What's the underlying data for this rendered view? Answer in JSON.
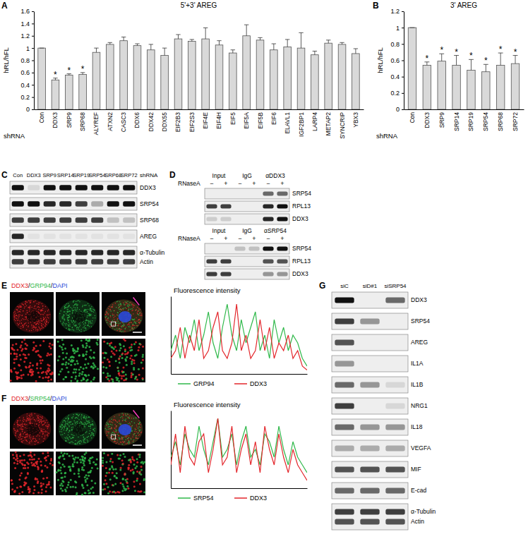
{
  "chart_data": [
    {
      "type": "bar",
      "title": "5'+3' AREG",
      "y_label": "hRL/hFL",
      "x_label": "shRNA",
      "categories": [
        "Con",
        "DDX3",
        "SRP9",
        "SRP68",
        "ALYREF",
        "ATXN2",
        "CASC3",
        "DDX6",
        "DDX42",
        "DDX55",
        "EIF2B3",
        "EIF2S3",
        "EIF4E",
        "EIF4H",
        "EIF5",
        "EIF5A",
        "EIF5B",
        "EIF6",
        "ELAVL1",
        "IGF2BP1",
        "LARP4",
        "METAP2",
        "SYNCRIP",
        "YBX3"
      ],
      "values": [
        1,
        0.48,
        0.56,
        0.57,
        0.93,
        1.06,
        1.12,
        1.04,
        0.97,
        0.88,
        1.15,
        1.11,
        1.15,
        1.05,
        0.92,
        1.2,
        1.13,
        0.97,
        1.02,
        1.0,
        0.89,
        1.08,
        1.06,
        0.91
      ],
      "errors": [
        0,
        0.03,
        0.02,
        0.03,
        0.07,
        0.03,
        0.06,
        0.03,
        0.09,
        0.12,
        0.07,
        0.03,
        0.18,
        0.07,
        0.05,
        0.18,
        0.04,
        0.1,
        0.12,
        0.25,
        0.06,
        0.05,
        0.03,
        0.08
      ],
      "color": "#d9d9d9",
      "ylim": [
        0,
        1.6
      ],
      "yticks": [
        0,
        0.2,
        0.4,
        0.6,
        0.8,
        1,
        1.2,
        1.4,
        1.6
      ],
      "annotations": [
        {
          "category": "DDX3",
          "text": "*"
        },
        {
          "category": "SRP9",
          "text": "*"
        },
        {
          "category": "SRP68",
          "text": "*"
        }
      ]
    },
    {
      "type": "bar",
      "title": "3' AREG",
      "y_label": "hRL/hFL",
      "x_label": "shRNA",
      "categories": [
        "Con",
        "DDX3",
        "SRP9",
        "SRP14",
        "SRP19",
        "SRP54",
        "SRP68",
        "SRP72"
      ],
      "values": [
        1,
        0.54,
        0.59,
        0.54,
        0.48,
        0.46,
        0.54,
        0.56
      ],
      "errors": [
        0,
        0.04,
        0.09,
        0.12,
        0.13,
        0.09,
        0.15,
        0.1
      ],
      "color": "#d9d9d9",
      "ylim": [
        0,
        1.2
      ],
      "yticks": [
        0,
        0.2,
        0.4,
        0.6,
        0.8,
        1,
        1.2
      ],
      "annotations": [
        {
          "category": "DDX3",
          "text": "*"
        },
        {
          "category": "SRP9",
          "text": "*"
        },
        {
          "category": "SRP14",
          "text": "*"
        },
        {
          "category": "SRP19",
          "text": "*"
        },
        {
          "category": "SRP54",
          "text": "*"
        },
        {
          "category": "SRP68",
          "text": "*"
        },
        {
          "category": "SRP72",
          "text": "*"
        }
      ]
    },
    {
      "type": "line",
      "title": "Fluorescence intensity",
      "tick_labels": false,
      "x": [
        0,
        1,
        2,
        3,
        4,
        5,
        6,
        7,
        8,
        9,
        10,
        11,
        12,
        13,
        14,
        15,
        16,
        17,
        18,
        19,
        20,
        21,
        22,
        23,
        24,
        25,
        26,
        27,
        28,
        29
      ],
      "xlim": [
        0,
        29
      ],
      "ylim": [
        0,
        1
      ],
      "series": [
        {
          "name": "GRP94",
          "color": "#2fb84a",
          "values": [
            0.3,
            0.5,
            0.2,
            0.6,
            0.4,
            0.7,
            0.3,
            0.5,
            0.8,
            0.4,
            0.2,
            0.6,
            0.9,
            0.5,
            0.3,
            0.7,
            0.4,
            0.6,
            0.8,
            0.3,
            0.5,
            0.2,
            0.7,
            0.4,
            0.6,
            0.3,
            0.5,
            0.4,
            0.2,
            0.1
          ]
        },
        {
          "name": "DDX3",
          "color": "#e3262b",
          "values": [
            0.2,
            0.3,
            0.6,
            0.2,
            0.5,
            0.3,
            0.7,
            0.2,
            0.3,
            0.6,
            0.8,
            0.3,
            0.2,
            0.4,
            0.9,
            0.3,
            0.5,
            0.2,
            0.3,
            0.7,
            0.3,
            0.6,
            0.2,
            0.4,
            0.3,
            0.5,
            0.2,
            0.3,
            0.1,
            0.05
          ]
        }
      ]
    },
    {
      "type": "line",
      "title": "Fluorescence intensity",
      "tick_labels": false,
      "x": [
        0,
        1,
        2,
        3,
        4,
        5,
        6,
        7,
        8,
        9,
        10,
        11,
        12,
        13,
        14,
        15,
        16,
        17,
        18,
        19,
        20,
        21,
        22,
        23,
        24,
        25,
        26,
        27,
        28,
        29
      ],
      "xlim": [
        0,
        29
      ],
      "ylim": [
        0,
        1
      ],
      "series": [
        {
          "name": "SRP54",
          "color": "#2fb84a",
          "values": [
            0.4,
            0.6,
            0.3,
            0.7,
            0.5,
            0.4,
            0.8,
            0.5,
            0.3,
            0.6,
            0.9,
            0.4,
            0.5,
            0.7,
            0.3,
            0.6,
            0.8,
            0.4,
            0.5,
            0.3,
            0.7,
            0.6,
            0.4,
            0.8,
            0.5,
            0.3,
            0.6,
            0.4,
            0.3,
            0.2
          ]
        },
        {
          "name": "DDX3",
          "color": "#e3262b",
          "values": [
            0.3,
            0.7,
            0.2,
            0.8,
            0.4,
            0.3,
            0.6,
            0.7,
            0.2,
            0.5,
            0.9,
            0.3,
            0.4,
            0.8,
            0.2,
            0.5,
            0.7,
            0.3,
            0.6,
            0.2,
            0.8,
            0.5,
            0.3,
            0.7,
            0.4,
            0.2,
            0.5,
            0.3,
            0.2,
            0.1
          ]
        }
      ]
    }
  ],
  "panel_labels": [
    "A",
    "B",
    "C",
    "D",
    "E",
    "F",
    "G"
  ],
  "panels": {
    "C": {
      "lane_header": "shRNA",
      "lanes": [
        "Con",
        "DDX3",
        "SRP9",
        "SRP14",
        "SRP19",
        "SRP54",
        "SRP68",
        "SRP72"
      ],
      "rows": [
        {
          "labels": [
            "DDX3"
          ],
          "bands": [
            [
              1,
              0.1,
              1,
              1,
              1,
              1,
              1,
              1
            ]
          ]
        },
        {
          "labels": [
            "SRP54"
          ],
          "bands": [
            [
              1,
              1,
              0.9,
              0.9,
              0.8,
              0.3,
              1,
              1
            ]
          ]
        },
        {
          "labels": [
            "SRP68"
          ],
          "bands": [
            [
              0.8,
              0.8,
              0.8,
              0.8,
              0.8,
              0.8,
              0.2,
              0.2
            ]
          ]
        },
        {
          "labels": [
            "AREG"
          ],
          "bands": [
            [
              0.9,
              0.05,
              0.05,
              0.05,
              0.05,
              0.05,
              0.05,
              0.05
            ]
          ]
        },
        {
          "labels": [
            "α-Tubulin",
            "Actin"
          ],
          "bands": [
            [
              0.9,
              0.9,
              0.9,
              0.9,
              0.9,
              0.9,
              0.9,
              0.9
            ],
            [
              0.8,
              0.8,
              0.8,
              0.8,
              0.8,
              0.8,
              0.8,
              0.8
            ]
          ]
        }
      ]
    },
    "D": {
      "groups": [
        {
          "header": [
            "Input",
            "IgG",
            "αDDX3"
          ],
          "treatment": "RNaseA",
          "signs": [
            "−",
            "+",
            "−",
            "+",
            "−",
            "+"
          ],
          "rows": [
            {
              "labels": [
                "SRP54"
              ],
              "bands": [
                [
                  0,
                  0,
                  0,
                  0,
                  0.6,
                  0.6
                ]
              ]
            },
            {
              "labels": [
                "RPL13"
              ],
              "bands": [
                [
                  0.8,
                  0.8,
                  0,
                  0,
                  0.9,
                  1
                ]
              ]
            },
            {
              "labels": [
                "DDX3"
              ],
              "bands": [
                [
                  0.15,
                  0.15,
                  0,
                  0,
                  0.9,
                  1
                ]
              ]
            }
          ]
        },
        {
          "header": [
            "Input",
            "IgG",
            "αSRP54"
          ],
          "treatment": "RNaseA",
          "signs": [
            "−",
            "+",
            "−",
            "+",
            "−",
            "+"
          ],
          "rows": [
            {
              "labels": [
                "SRP54"
              ],
              "bands": [
                [
                  0,
                  0,
                  0.2,
                  0.2,
                  1,
                  1
                ]
              ]
            },
            {
              "labels": [
                "RPL13"
              ],
              "bands": [
                [
                  0.8,
                  0.8,
                  0,
                  0,
                  0.7,
                  0.7
                ]
              ]
            },
            {
              "labels": [
                "DDX3"
              ],
              "bands": [
                [
                  0.8,
                  0.8,
                  0,
                  0,
                  0.4,
                  0.4
                ]
              ]
            }
          ]
        }
      ]
    },
    "E": {
      "stain": [
        {
          "text": "DDX3",
          "color": "#e3262b"
        },
        {
          "text": "/",
          "color": "#000000"
        },
        {
          "text": "GRP94",
          "color": "#2fb84a"
        },
        {
          "text": "/",
          "color": "#000000"
        },
        {
          "text": "DAPI",
          "color": "#2a48d8"
        }
      ]
    },
    "F": {
      "stain": [
        {
          "text": "DDX3",
          "color": "#e3262b"
        },
        {
          "text": "/",
          "color": "#000000"
        },
        {
          "text": "SRP54",
          "color": "#2fb84a"
        },
        {
          "text": "/",
          "color": "#000000"
        },
        {
          "text": "DAPI",
          "color": "#2a48d8"
        }
      ]
    },
    "G": {
      "lanes": [
        "siC",
        "siD#1",
        "siSRP54"
      ],
      "rows": [
        {
          "labels": [
            "DDX3"
          ],
          "bands": [
            [
              1,
              0,
              0.6
            ]
          ]
        },
        {
          "labels": [
            "SRP54"
          ],
          "bands": [
            [
              0.8,
              0.4,
              0
            ]
          ]
        },
        {
          "labels": [
            "AREG"
          ],
          "bands": [
            [
              0.7,
              0,
              0
            ]
          ]
        },
        {
          "labels": [
            "IL1A"
          ],
          "bands": [
            [
              0.4,
              0,
              0
            ]
          ]
        },
        {
          "labels": [
            "IL1B"
          ],
          "bands": [
            [
              0.6,
              0.4,
              0.1
            ]
          ]
        },
        {
          "labels": [
            "NRG1"
          ],
          "bands": [
            [
              0.8,
              0,
              0.1
            ]
          ]
        },
        {
          "labels": [
            "IL18"
          ],
          "bands": [
            [
              0.6,
              0.4,
              0.4
            ]
          ]
        },
        {
          "labels": [
            "VEGFA"
          ],
          "bands": [
            [
              0.3,
              0.3,
              0.3
            ]
          ]
        },
        {
          "labels": [
            "MIF"
          ],
          "bands": [
            [
              0.7,
              0.7,
              0.7
            ]
          ]
        },
        {
          "labels": [
            "E-cad"
          ],
          "bands": [
            [
              0.6,
              0.6,
              0.6
            ]
          ]
        },
        {
          "labels": [
            "α-Tubulin",
            "Actin"
          ],
          "bands": [
            [
              0.8,
              0.8,
              0.8
            ],
            [
              0.7,
              0.7,
              0.7
            ]
          ]
        }
      ]
    }
  }
}
